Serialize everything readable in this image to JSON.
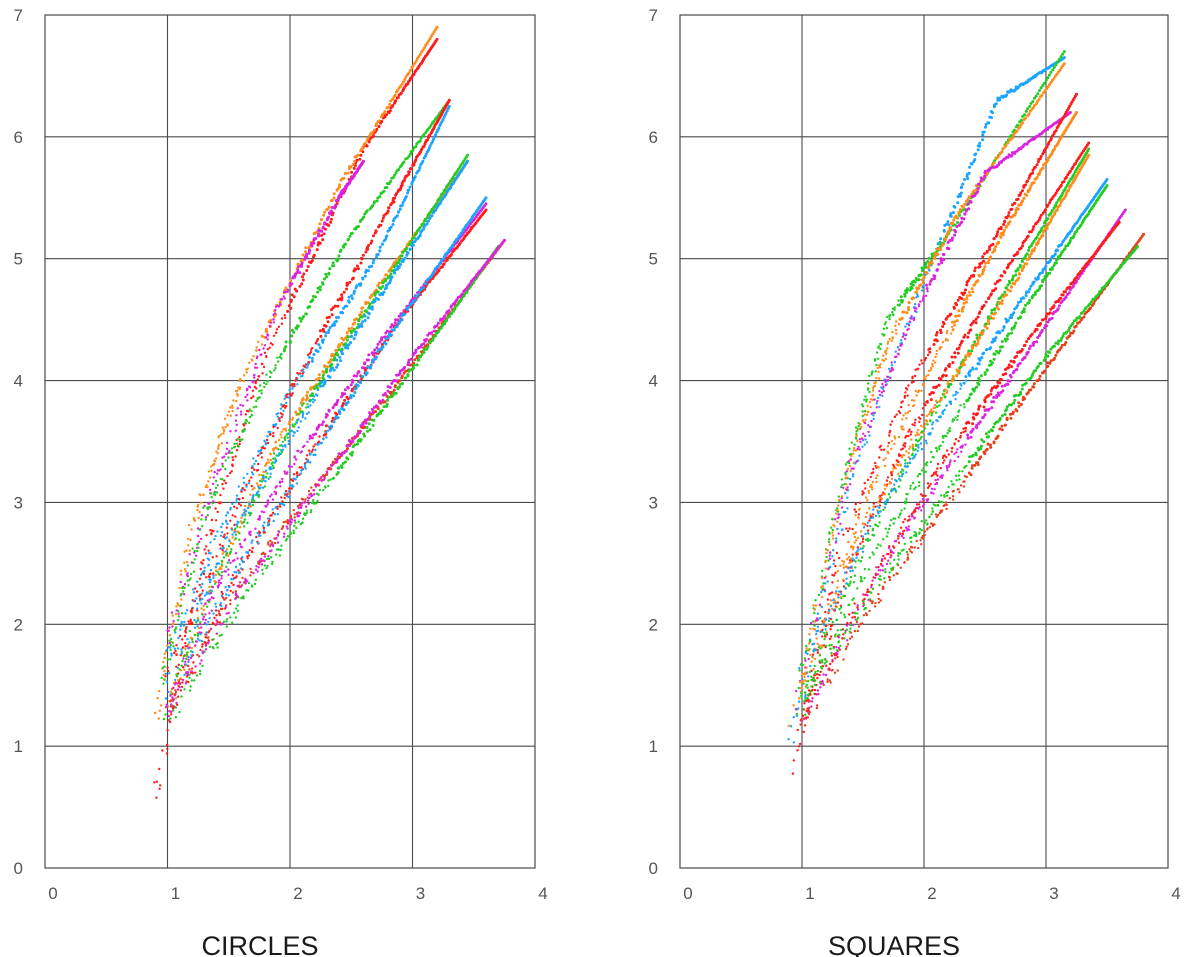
{
  "chart_data": [
    {
      "type": "scatter",
      "xlabel": "CIRCLES",
      "ylabel": "",
      "xlim": [
        0,
        4
      ],
      "ylim": [
        0,
        7
      ],
      "xticks": [
        "0",
        "1",
        "2",
        "3",
        "4"
      ],
      "yticks": [
        "0",
        "1",
        "2",
        "3",
        "4",
        "5",
        "6",
        "7"
      ],
      "grid": true,
      "colors": [
        "#ff1a1a",
        "#ff8c1a",
        "#22cc22",
        "#1aa3ff",
        "#dd22dd",
        "#e6401a"
      ],
      "series": [
        {
          "color": "#ff1a1a",
          "x": [
            0.9,
            1.3,
            1.8,
            2.6,
            3.2
          ],
          "y": [
            0.6,
            2.6,
            4.2,
            5.9,
            6.8
          ]
        },
        {
          "color": "#ff8c1a",
          "x": [
            0.9,
            1.2,
            1.6,
            2.4,
            3.2
          ],
          "y": [
            1.2,
            2.8,
            4.0,
            5.6,
            6.9
          ]
        },
        {
          "color": "#dd22dd",
          "x": [
            1.0,
            1.4,
            1.9,
            2.4,
            2.6
          ],
          "y": [
            1.9,
            3.2,
            4.6,
            5.5,
            5.8
          ]
        },
        {
          "color": "#22cc22",
          "x": [
            0.95,
            1.3,
            1.8,
            2.5,
            3.3
          ],
          "y": [
            1.5,
            2.9,
            4.0,
            5.2,
            6.3
          ]
        },
        {
          "color": "#1aa3ff",
          "x": [
            1.0,
            1.4,
            2.0,
            2.7,
            3.3
          ],
          "y": [
            1.7,
            2.7,
            3.9,
            5.0,
            6.25
          ]
        },
        {
          "color": "#ff1a1a",
          "x": [
            1.0,
            1.5,
            2.1,
            2.8,
            3.3
          ],
          "y": [
            1.6,
            2.8,
            4.1,
            5.4,
            6.3
          ]
        },
        {
          "color": "#ff8c1a",
          "x": [
            1.0,
            1.4,
            1.9,
            2.6,
            3.45
          ],
          "y": [
            1.3,
            2.4,
            3.5,
            4.6,
            5.8
          ]
        },
        {
          "color": "#22cc22",
          "x": [
            1.0,
            1.5,
            2.0,
            2.7,
            3.45
          ],
          "y": [
            1.4,
            2.6,
            3.6,
            4.7,
            5.85
          ]
        },
        {
          "color": "#1aa3ff",
          "x": [
            1.0,
            1.5,
            2.1,
            2.8,
            3.45
          ],
          "y": [
            1.5,
            2.7,
            3.7,
            4.8,
            5.8
          ]
        },
        {
          "color": "#dd22dd",
          "x": [
            1.0,
            1.4,
            2.0,
            2.8,
            3.6
          ],
          "y": [
            1.3,
            2.3,
            3.3,
            4.4,
            5.45
          ]
        },
        {
          "color": "#ff1a1a",
          "x": [
            1.0,
            1.5,
            2.1,
            2.9,
            3.6
          ],
          "y": [
            1.2,
            2.3,
            3.3,
            4.5,
            5.4
          ]
        },
        {
          "color": "#1aa3ff",
          "x": [
            1.0,
            1.6,
            2.2,
            2.9,
            3.6
          ],
          "y": [
            1.4,
            2.5,
            3.4,
            4.5,
            5.5
          ]
        },
        {
          "color": "#e6401a",
          "x": [
            1.0,
            1.5,
            2.1,
            2.9,
            3.75
          ],
          "y": [
            1.3,
            2.2,
            3.0,
            4.0,
            5.15
          ]
        },
        {
          "color": "#22cc22",
          "x": [
            1.0,
            1.6,
            2.2,
            3.0,
            3.7
          ],
          "y": [
            1.2,
            2.2,
            3.0,
            4.1,
            5.1
          ]
        },
        {
          "color": "#dd22dd",
          "x": [
            1.0,
            1.6,
            2.2,
            3.0,
            3.75
          ],
          "y": [
            1.3,
            2.3,
            3.1,
            4.2,
            5.15
          ]
        }
      ]
    },
    {
      "type": "scatter",
      "xlabel": "SQUARES",
      "ylabel": "",
      "xlim": [
        0,
        4
      ],
      "ylim": [
        0,
        7
      ],
      "xticks": [
        "0",
        "1",
        "2",
        "3",
        "4"
      ],
      "yticks": [
        "0",
        "1",
        "2",
        "3",
        "4",
        "5",
        "6",
        "7"
      ],
      "grid": true,
      "colors": [
        "#ff1a1a",
        "#ff8c1a",
        "#22cc22",
        "#1aa3ff",
        "#dd22dd",
        "#e6401a"
      ],
      "series": [
        {
          "color": "#1aa3ff",
          "x": [
            0.9,
            1.4,
            2.0,
            2.6,
            3.15
          ],
          "y": [
            1.0,
            3.2,
            4.8,
            6.3,
            6.65
          ]
        },
        {
          "color": "#22cc22",
          "x": [
            0.95,
            1.3,
            1.7,
            2.2,
            3.15
          ],
          "y": [
            1.3,
            3.0,
            4.5,
            5.2,
            6.7
          ]
        },
        {
          "color": "#ff8c1a",
          "x": [
            0.9,
            1.3,
            1.7,
            2.3,
            3.15
          ],
          "y": [
            1.1,
            3.0,
            4.3,
            5.4,
            6.6
          ]
        },
        {
          "color": "#dd22dd",
          "x": [
            0.95,
            1.4,
            1.9,
            2.5,
            3.2
          ],
          "y": [
            1.3,
            3.3,
            4.5,
            5.7,
            6.2
          ]
        },
        {
          "color": "#ff1a1a",
          "x": [
            0.9,
            1.3,
            1.9,
            2.6,
            3.25
          ],
          "y": [
            0.7,
            2.6,
            4.0,
            5.2,
            6.35
          ]
        },
        {
          "color": "#ff8c1a",
          "x": [
            1.0,
            1.5,
            2.1,
            2.7,
            3.25
          ],
          "y": [
            1.4,
            3.0,
            4.2,
            5.3,
            6.2
          ]
        },
        {
          "color": "#ff1a1a",
          "x": [
            1.0,
            1.4,
            1.9,
            2.6,
            3.35
          ],
          "y": [
            1.2,
            2.5,
            3.6,
            4.8,
            5.95
          ]
        },
        {
          "color": "#22cc22",
          "x": [
            1.0,
            1.5,
            2.0,
            2.7,
            3.35
          ],
          "y": [
            1.4,
            2.6,
            3.6,
            4.8,
            5.9
          ]
        },
        {
          "color": "#ff8c1a",
          "x": [
            1.0,
            1.5,
            2.1,
            2.8,
            3.35
          ],
          "y": [
            1.5,
            2.8,
            3.8,
            4.9,
            5.85
          ]
        },
        {
          "color": "#1aa3ff",
          "x": [
            1.0,
            1.6,
            2.2,
            2.9,
            3.5
          ],
          "y": [
            1.6,
            2.9,
            3.8,
            4.8,
            5.65
          ]
        },
        {
          "color": "#22cc22",
          "x": [
            1.0,
            1.6,
            2.2,
            2.9,
            3.5
          ],
          "y": [
            1.3,
            2.6,
            3.6,
            4.7,
            5.6
          ]
        },
        {
          "color": "#dd22dd",
          "x": [
            1.0,
            1.6,
            2.2,
            2.9,
            3.65
          ],
          "y": [
            1.2,
            2.4,
            3.3,
            4.3,
            5.4
          ]
        },
        {
          "color": "#ff1a1a",
          "x": [
            1.0,
            1.6,
            2.2,
            2.9,
            3.6
          ],
          "y": [
            1.3,
            2.4,
            3.4,
            4.4,
            5.3
          ]
        },
        {
          "color": "#e6401a",
          "x": [
            1.0,
            1.6,
            2.2,
            3.0,
            3.8
          ],
          "y": [
            1.2,
            2.2,
            3.0,
            4.1,
            5.2
          ]
        },
        {
          "color": "#22cc22",
          "x": [
            1.0,
            1.6,
            2.2,
            3.0,
            3.75
          ],
          "y": [
            1.4,
            2.3,
            3.1,
            4.2,
            5.1
          ]
        }
      ]
    }
  ]
}
